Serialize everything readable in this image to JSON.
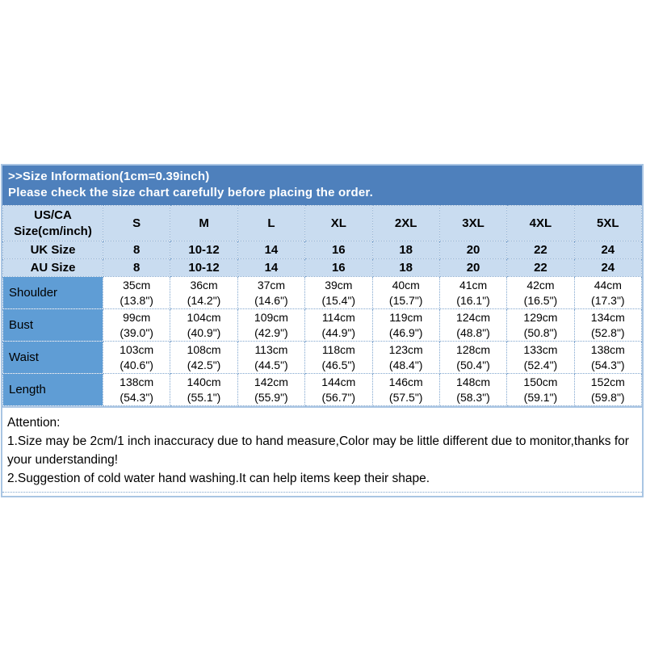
{
  "banner": {
    "title": ">>Size Information(1cm=0.39inch)",
    "subtitle": "Please check the size chart carefully before placing the order."
  },
  "table": {
    "corner_line1": "US/CA",
    "corner_line2": "Size(cm/inch)",
    "sizes": [
      "S",
      "M",
      "L",
      "XL",
      "2XL",
      "3XL",
      "4XL",
      "5XL"
    ],
    "uk": {
      "label": "UK Size",
      "values": [
        "8",
        "10-12",
        "14",
        "16",
        "18",
        "20",
        "22",
        "24"
      ]
    },
    "au": {
      "label": "AU Size",
      "values": [
        "8",
        "10-12",
        "14",
        "16",
        "18",
        "20",
        "22",
        "24"
      ]
    },
    "measurements": [
      {
        "label": "Shoulder",
        "cm": [
          "35cm",
          "36cm",
          "37cm",
          "39cm",
          "40cm",
          "41cm",
          "42cm",
          "44cm"
        ],
        "inch": [
          "(13.8\")",
          "(14.2\")",
          "(14.6\")",
          "(15.4\")",
          "(15.7\")",
          "(16.1\")",
          "(16.5\")",
          "(17.3\")"
        ]
      },
      {
        "label": "Bust",
        "cm": [
          "99cm",
          "104cm",
          "109cm",
          "114cm",
          "119cm",
          "124cm",
          "129cm",
          "134cm"
        ],
        "inch": [
          "(39.0\")",
          "(40.9\")",
          "(42.9\")",
          "(44.9\")",
          "(46.9\")",
          "(48.8\")",
          "(50.8\")",
          "(52.8\")"
        ]
      },
      {
        "label": "Waist",
        "cm": [
          "103cm",
          "108cm",
          "113cm",
          "118cm",
          "123cm",
          "128cm",
          "133cm",
          "138cm"
        ],
        "inch": [
          "(40.6\")",
          "(42.5\")",
          "(44.5\")",
          "(46.5\")",
          "(48.4\")",
          "(50.4\")",
          "(52.4\")",
          "(54.3\")"
        ]
      },
      {
        "label": "Length",
        "cm": [
          "138cm",
          "140cm",
          "142cm",
          "144cm",
          "146cm",
          "148cm",
          "150cm",
          "152cm"
        ],
        "inch": [
          "(54.3\")",
          "(55.1\")",
          "(55.9\")",
          "(56.7\")",
          "(57.5\")",
          "(58.3\")",
          "(59.1\")",
          "(59.8\")"
        ]
      }
    ]
  },
  "attention": {
    "heading": "Attention:",
    "note1": "1.Size may be 2cm/1 inch inaccuracy due to hand measure,Color may be little different due to monitor,thanks for your understanding!",
    "note2": "2.Suggestion of cold water hand washing.It can help items keep their shape."
  },
  "colors": {
    "banner_bg": "#4E80BC",
    "header_bg": "#C9DCF0",
    "label_bg": "#5F9DD5",
    "panel_border": "#A9C5E3",
    "grid_dotted": "#7FA5CE",
    "banner_text": "#FFFFFF",
    "table_text": "#000000"
  }
}
